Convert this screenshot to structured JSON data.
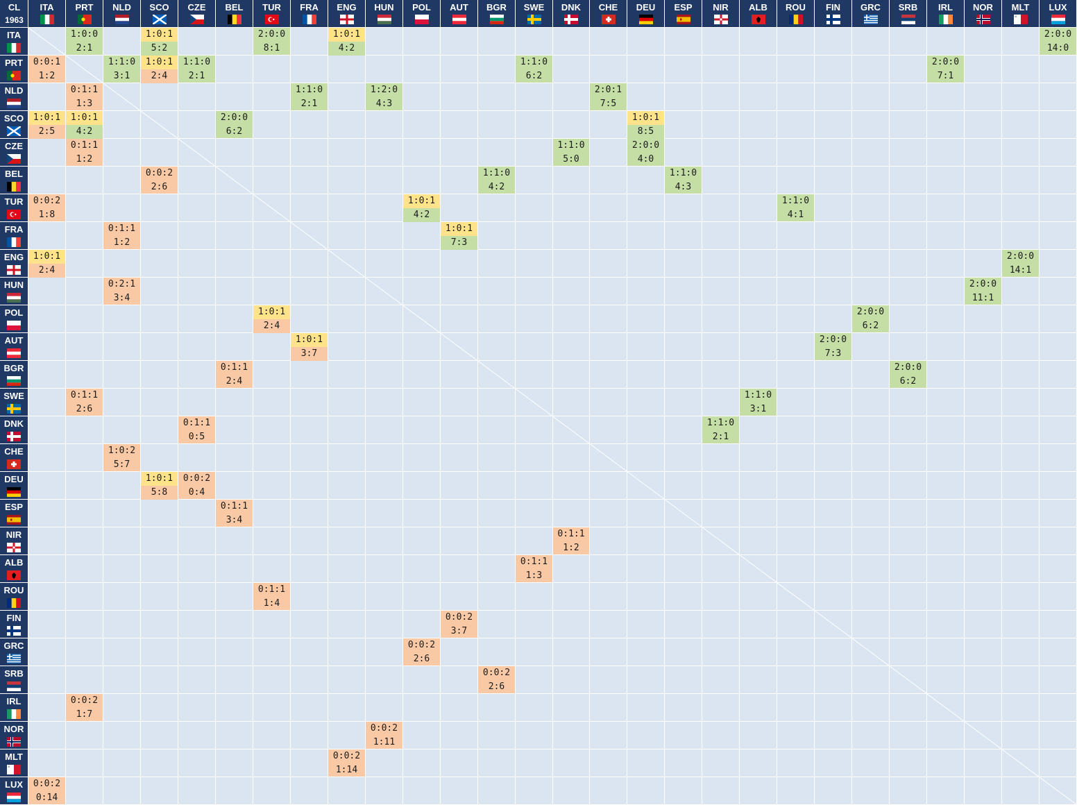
{
  "corner": {
    "label": "CL",
    "year": "1963"
  },
  "teams": [
    "ITA",
    "PRT",
    "NLD",
    "SCO",
    "CZE",
    "BEL",
    "TUR",
    "FRA",
    "ENG",
    "HUN",
    "POL",
    "AUT",
    "BGR",
    "SWE",
    "DNK",
    "CHE",
    "DEU",
    "ESP",
    "NIR",
    "ALB",
    "ROU",
    "FIN",
    "GRC",
    "SRB",
    "IRL",
    "NOR",
    "MLT",
    "LUX"
  ],
  "colors": {
    "header": "#1f3864",
    "background": "#dbe5f1",
    "win": "#c4dea6",
    "draw": "#ffe38a",
    "loss": "#f8c9a4"
  },
  "chart_data": {
    "type": "table",
    "title": "",
    "cells": [
      {
        "row": "ITA",
        "col": "PRT",
        "top": "1:0:0",
        "bottom": "2:1"
      },
      {
        "row": "ITA",
        "col": "SCO",
        "top": "1:0:1",
        "bottom": "5:2"
      },
      {
        "row": "ITA",
        "col": "TUR",
        "top": "2:0:0",
        "bottom": "8:1"
      },
      {
        "row": "ITA",
        "col": "ENG",
        "top": "1:0:1",
        "bottom": "4:2"
      },
      {
        "row": "ITA",
        "col": "LUX",
        "top": "2:0:0",
        "bottom": "14:0"
      },
      {
        "row": "PRT",
        "col": "ITA",
        "top": "0:0:1",
        "bottom": "1:2"
      },
      {
        "row": "PRT",
        "col": "NLD",
        "top": "1:1:0",
        "bottom": "3:1"
      },
      {
        "row": "PRT",
        "col": "SCO",
        "top": "1:0:1",
        "bottom": "2:4"
      },
      {
        "row": "PRT",
        "col": "CZE",
        "top": "1:1:0",
        "bottom": "2:1"
      },
      {
        "row": "PRT",
        "col": "SWE",
        "top": "1:1:0",
        "bottom": "6:2"
      },
      {
        "row": "PRT",
        "col": "IRL",
        "top": "2:0:0",
        "bottom": "7:1"
      },
      {
        "row": "NLD",
        "col": "PRT",
        "top": "0:1:1",
        "bottom": "1:3"
      },
      {
        "row": "NLD",
        "col": "FRA",
        "top": "1:1:0",
        "bottom": "2:1"
      },
      {
        "row": "NLD",
        "col": "HUN",
        "top": "1:2:0",
        "bottom": "4:3"
      },
      {
        "row": "NLD",
        "col": "CHE",
        "top": "2:0:1",
        "bottom": "7:5"
      },
      {
        "row": "SCO",
        "col": "ITA",
        "top": "1:0:1",
        "bottom": "2:5"
      },
      {
        "row": "SCO",
        "col": "PRT",
        "top": "1:0:1",
        "bottom": "4:2"
      },
      {
        "row": "SCO",
        "col": "BEL",
        "top": "2:0:0",
        "bottom": "6:2"
      },
      {
        "row": "SCO",
        "col": "DEU",
        "top": "1:0:1",
        "bottom": "8:5"
      },
      {
        "row": "CZE",
        "col": "PRT",
        "top": "0:1:1",
        "bottom": "1:2"
      },
      {
        "row": "CZE",
        "col": "DNK",
        "top": "1:1:0",
        "bottom": "5:0"
      },
      {
        "row": "CZE",
        "col": "DEU",
        "top": "2:0:0",
        "bottom": "4:0"
      },
      {
        "row": "BEL",
        "col": "SCO",
        "top": "0:0:2",
        "bottom": "2:6"
      },
      {
        "row": "BEL",
        "col": "BGR",
        "top": "1:1:0",
        "bottom": "4:2"
      },
      {
        "row": "BEL",
        "col": "ESP",
        "top": "1:1:0",
        "bottom": "4:3"
      },
      {
        "row": "TUR",
        "col": "ITA",
        "top": "0:0:2",
        "bottom": "1:8"
      },
      {
        "row": "TUR",
        "col": "POL",
        "top": "1:0:1",
        "bottom": "4:2"
      },
      {
        "row": "TUR",
        "col": "ROU",
        "top": "1:1:0",
        "bottom": "4:1"
      },
      {
        "row": "FRA",
        "col": "NLD",
        "top": "0:1:1",
        "bottom": "1:2"
      },
      {
        "row": "FRA",
        "col": "AUT",
        "top": "1:0:1",
        "bottom": "7:3"
      },
      {
        "row": "ENG",
        "col": "ITA",
        "top": "1:0:1",
        "bottom": "2:4"
      },
      {
        "row": "ENG",
        "col": "MLT",
        "top": "2:0:0",
        "bottom": "14:1"
      },
      {
        "row": "HUN",
        "col": "NLD",
        "top": "0:2:1",
        "bottom": "3:4"
      },
      {
        "row": "HUN",
        "col": "NOR",
        "top": "2:0:0",
        "bottom": "11:1"
      },
      {
        "row": "POL",
        "col": "TUR",
        "top": "1:0:1",
        "bottom": "2:4"
      },
      {
        "row": "POL",
        "col": "GRC",
        "top": "2:0:0",
        "bottom": "6:2"
      },
      {
        "row": "AUT",
        "col": "FRA",
        "top": "1:0:1",
        "bottom": "3:7"
      },
      {
        "row": "AUT",
        "col": "FIN",
        "top": "2:0:0",
        "bottom": "7:3"
      },
      {
        "row": "BGR",
        "col": "BEL",
        "top": "0:1:1",
        "bottom": "2:4"
      },
      {
        "row": "BGR",
        "col": "SRB",
        "top": "2:0:0",
        "bottom": "6:2"
      },
      {
        "row": "SWE",
        "col": "PRT",
        "top": "0:1:1",
        "bottom": "2:6"
      },
      {
        "row": "SWE",
        "col": "ALB",
        "top": "1:1:0",
        "bottom": "3:1"
      },
      {
        "row": "DNK",
        "col": "CZE",
        "top": "0:1:1",
        "bottom": "0:5"
      },
      {
        "row": "DNK",
        "col": "NIR",
        "top": "1:1:0",
        "bottom": "2:1"
      },
      {
        "row": "CHE",
        "col": "NLD",
        "top": "1:0:2",
        "bottom": "5:7"
      },
      {
        "row": "DEU",
        "col": "SCO",
        "top": "1:0:1",
        "bottom": "5:8"
      },
      {
        "row": "DEU",
        "col": "CZE",
        "top": "0:0:2",
        "bottom": "0:4"
      },
      {
        "row": "ESP",
        "col": "BEL",
        "top": "0:1:1",
        "bottom": "3:4"
      },
      {
        "row": "NIR",
        "col": "DNK",
        "top": "0:1:1",
        "bottom": "1:2"
      },
      {
        "row": "ALB",
        "col": "SWE",
        "top": "0:1:1",
        "bottom": "1:3"
      },
      {
        "row": "ROU",
        "col": "TUR",
        "top": "0:1:1",
        "bottom": "1:4"
      },
      {
        "row": "FIN",
        "col": "AUT",
        "top": "0:0:2",
        "bottom": "3:7"
      },
      {
        "row": "GRC",
        "col": "POL",
        "top": "0:0:2",
        "bottom": "2:6"
      },
      {
        "row": "SRB",
        "col": "BGR",
        "top": "0:0:2",
        "bottom": "2:6"
      },
      {
        "row": "IRL",
        "col": "PRT",
        "top": "0:0:2",
        "bottom": "1:7"
      },
      {
        "row": "NOR",
        "col": "HUN",
        "top": "0:0:2",
        "bottom": "1:11"
      },
      {
        "row": "MLT",
        "col": "ENG",
        "top": "0:0:2",
        "bottom": "1:14"
      },
      {
        "row": "LUX",
        "col": "ITA",
        "top": "0:0:2",
        "bottom": "0:14"
      }
    ]
  }
}
